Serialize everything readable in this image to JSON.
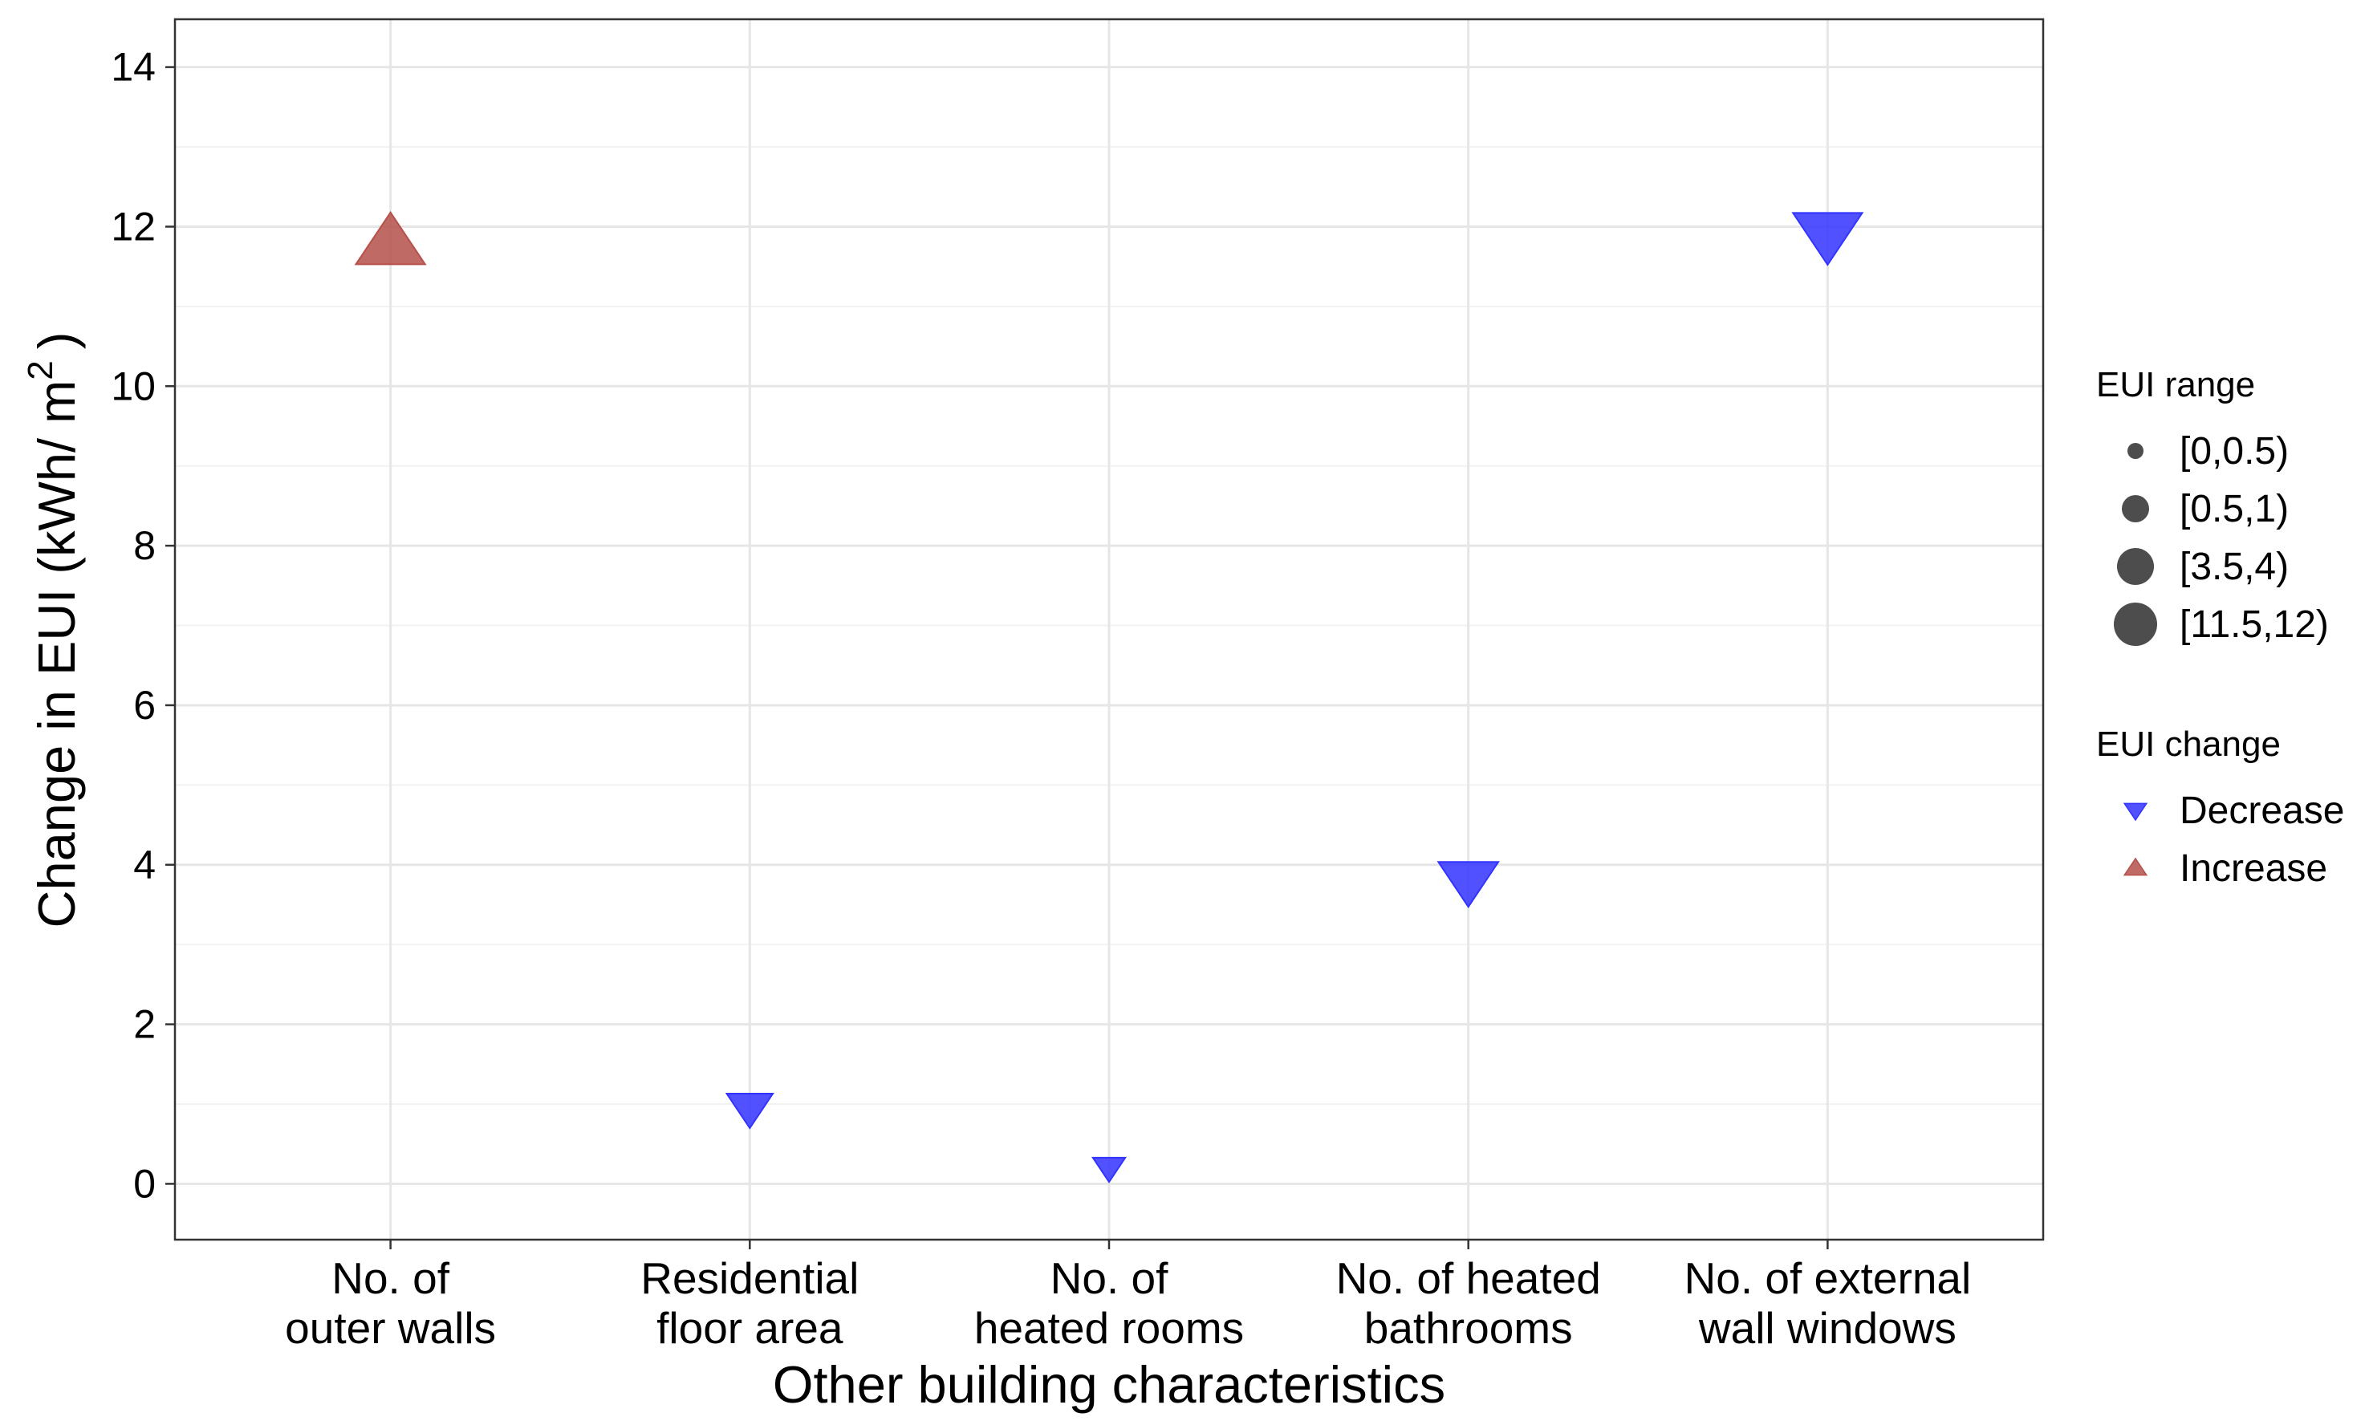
{
  "chart_data": {
    "type": "scatter",
    "xlabel": "Other building characteristics",
    "ylabel": "Change in EUI (kWh/ m",
    "ylabel_superscript": "2",
    "ylabel_close": ")",
    "ylim": [
      -0.7,
      14.6
    ],
    "yticks": [
      0,
      2,
      4,
      6,
      8,
      10,
      12,
      14
    ],
    "grid": true,
    "legend_position": "right",
    "categories": [
      [
        "No. of",
        "outer walls"
      ],
      [
        "Residential",
        "floor area"
      ],
      [
        "No. of",
        "heated rooms"
      ],
      [
        "No. of heated",
        "bathrooms"
      ],
      [
        "No. of external",
        "wall windows"
      ]
    ],
    "points": [
      {
        "category_index": 0,
        "value": 11.8,
        "change": "Increase",
        "range": "[11.5,12)"
      },
      {
        "category_index": 1,
        "value": 0.95,
        "change": "Decrease",
        "range": "[0.5,1)"
      },
      {
        "category_index": 2,
        "value": 0.2,
        "change": "Decrease",
        "range": "[0,0.5)"
      },
      {
        "category_index": 3,
        "value": 3.8,
        "change": "Decrease",
        "range": "[3.5,4)"
      },
      {
        "category_index": 4,
        "value": 11.9,
        "change": "Decrease",
        "range": "[11.5,12)"
      }
    ],
    "legend_size": {
      "title": "EUI range",
      "items": [
        "[0,0.5)",
        "[0.5,1)",
        "[3.5,4)",
        "[11.5,12)"
      ]
    },
    "legend_shape": {
      "title": "EUI change",
      "items": [
        {
          "label": "Decrease",
          "color": "#3333ff",
          "shape": "triangle-down"
        },
        {
          "label": "Increase",
          "color": "#b5504b",
          "shape": "triangle-up"
        }
      ]
    },
    "colors": {
      "decrease": "#3333ff",
      "increase": "#b5504b",
      "size_legend": "#4d4d4d",
      "grid_major": "#e6e6e6",
      "grid_minor": "#f2f2f2"
    }
  }
}
